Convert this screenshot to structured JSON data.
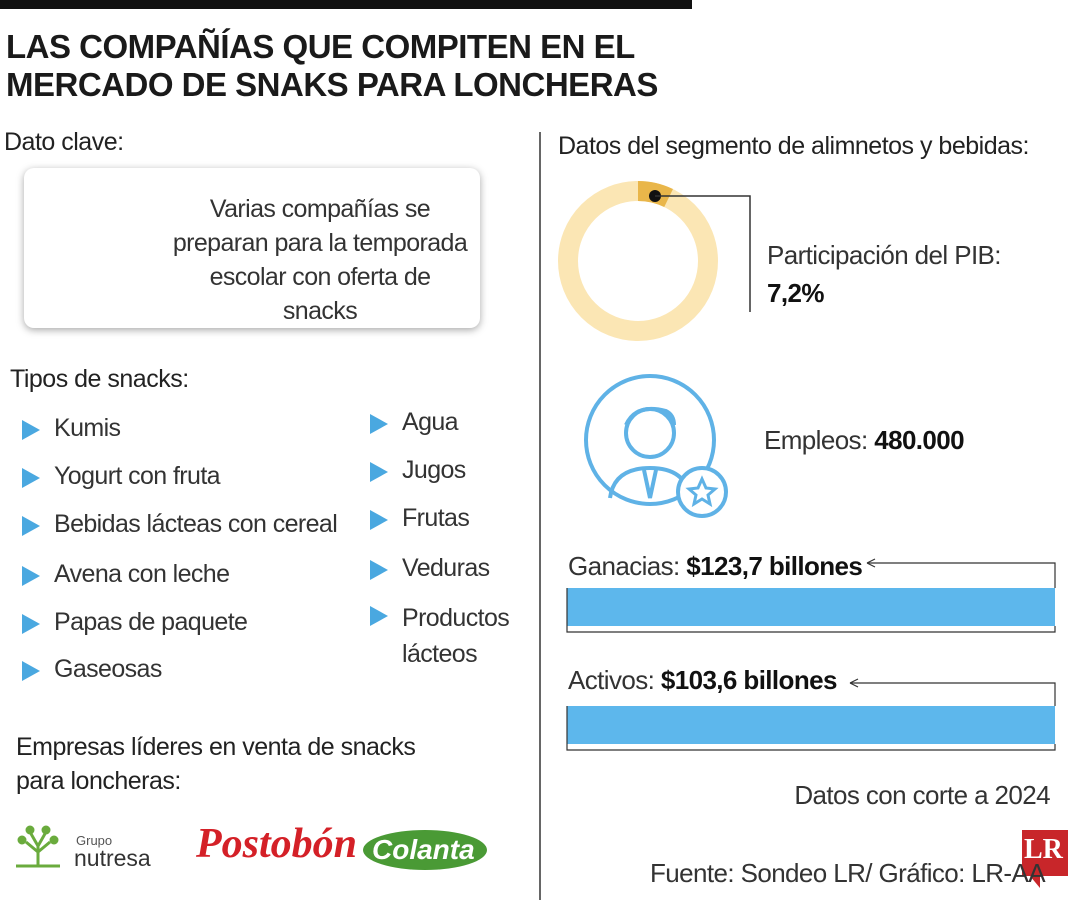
{
  "title": [
    "LAS COMPAÑÍAS QUE COMPITEN EN EL",
    "MERCADO DE SNAKS PARA LONCHERAS"
  ],
  "key": {
    "heading": "Dato clave:",
    "text": "Varias compañías se preparan para la temporada escolar con oferta de snacks"
  },
  "snacks": {
    "heading": "Tipos de snacks:",
    "items": [
      "Kumis",
      "Yogurt con fruta",
      "Bebidas lácteas con cereal",
      "Avena con leche",
      "Papas de paquete",
      "Gaseosas",
      "Agua",
      "Jugos",
      "Frutas",
      "Veduras",
      "Productos lácteos"
    ]
  },
  "companies": {
    "heading": "Empresas líderes en venta de snacks para loncheras:",
    "logos": [
      {
        "small": "Grupo",
        "name": "nutresa"
      },
      {
        "name": "Postobón"
      },
      {
        "name": "Colanta"
      }
    ]
  },
  "segment": {
    "heading": "Datos del segmento de alimnetos y bebidas:",
    "pib": {
      "label": "Participación del PIB:",
      "value": 7.2,
      "value_label": "7,2%"
    },
    "employment": {
      "label": "Empleos:",
      "value": "480.000"
    },
    "earnings": {
      "label": "Ganacias:",
      "value": "$123,7 billones"
    },
    "assets": {
      "label": "Activos:",
      "value": "$103,6 billones"
    },
    "note": "Datos con corte a 2024"
  },
  "source": "Fuente: Sondeo LR/ Gráfico: LR-AA",
  "brand": "LR"
}
